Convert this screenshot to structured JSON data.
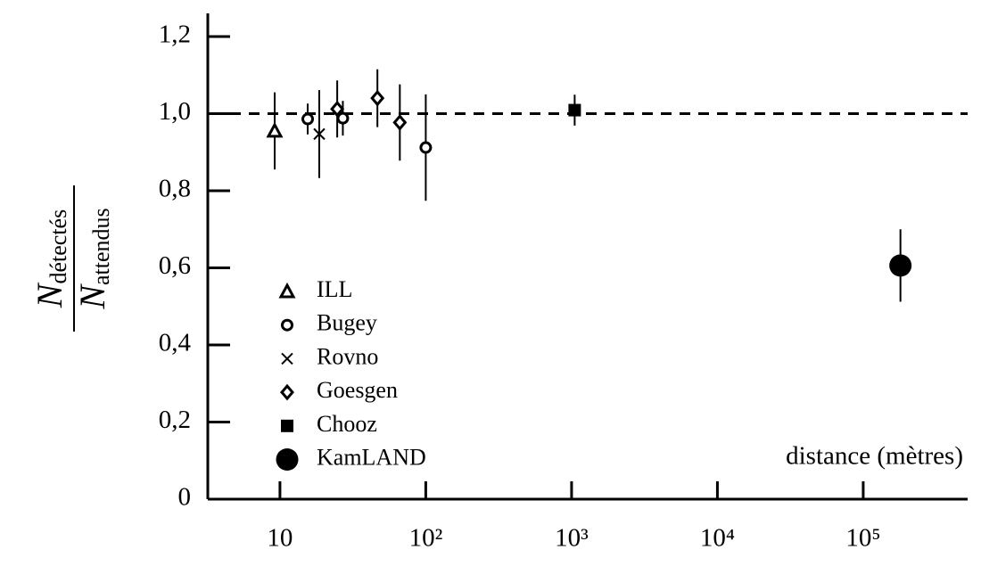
{
  "chart_data": {
    "type": "scatter",
    "ylabel": {
      "numerator": {
        "symbol": "N",
        "subscript": "détectés"
      },
      "denominator": {
        "symbol": "N",
        "subscript": "attendus"
      }
    },
    "xlabel": "distance (mètres)",
    "log_x": true,
    "xlim": [
      3.2,
      520000
    ],
    "xticks": [
      10,
      {
        "value": 100,
        "label": "10²"
      },
      {
        "value": 1000,
        "label": "10³"
      },
      {
        "value": 10000,
        "label": "10⁴"
      },
      {
        "value": 100000,
        "label": "10⁵"
      }
    ],
    "ylim": [
      0,
      1.26
    ],
    "yticks": [
      0,
      {
        "value": 0.2,
        "label": "0,2"
      },
      {
        "value": 0.4,
        "label": "0,4"
      },
      {
        "value": 0.6,
        "label": "0,6"
      },
      {
        "value": 0.8,
        "label": "0,8"
      },
      {
        "value": 1.0,
        "label": "1,0"
      },
      {
        "value": 1.2,
        "label": "1,2"
      }
    ],
    "reference_line": 1.0,
    "series": [
      {
        "name": "ILL",
        "marker": "triangle",
        "color": "#000000",
        "x": [
          9.2
        ],
        "values": [
          0.955
        ],
        "errors": [
          0.1
        ]
      },
      {
        "name": "Bugey",
        "marker": "circle",
        "color": "#000000",
        "x": [
          15.5,
          27,
          100
        ],
        "values": [
          0.986,
          0.988,
          0.912
        ],
        "errors": [
          0.04,
          0.045,
          0.138
        ]
      },
      {
        "name": "Rovno",
        "marker": "cross",
        "color": "#000000",
        "x": [
          18.6
        ],
        "values": [
          0.947
        ],
        "errors": [
          0.114
        ]
      },
      {
        "name": "Goesgen",
        "marker": "diamond",
        "color": "#000000",
        "x": [
          24.7,
          46.6,
          66.4
        ],
        "values": [
          1.012,
          1.04,
          0.977
        ],
        "errors": [
          0.074,
          0.075,
          0.099
        ]
      },
      {
        "name": "Chooz",
        "marker": "square",
        "color": "#000000",
        "x": [
          1050
        ],
        "values": [
          1.009
        ],
        "errors": [
          0.04
        ]
      },
      {
        "name": "KamLAND",
        "marker": "dot",
        "color": "#000000",
        "x": [
          180000
        ],
        "values": [
          0.606
        ],
        "errors": [
          0.094
        ]
      }
    ]
  }
}
